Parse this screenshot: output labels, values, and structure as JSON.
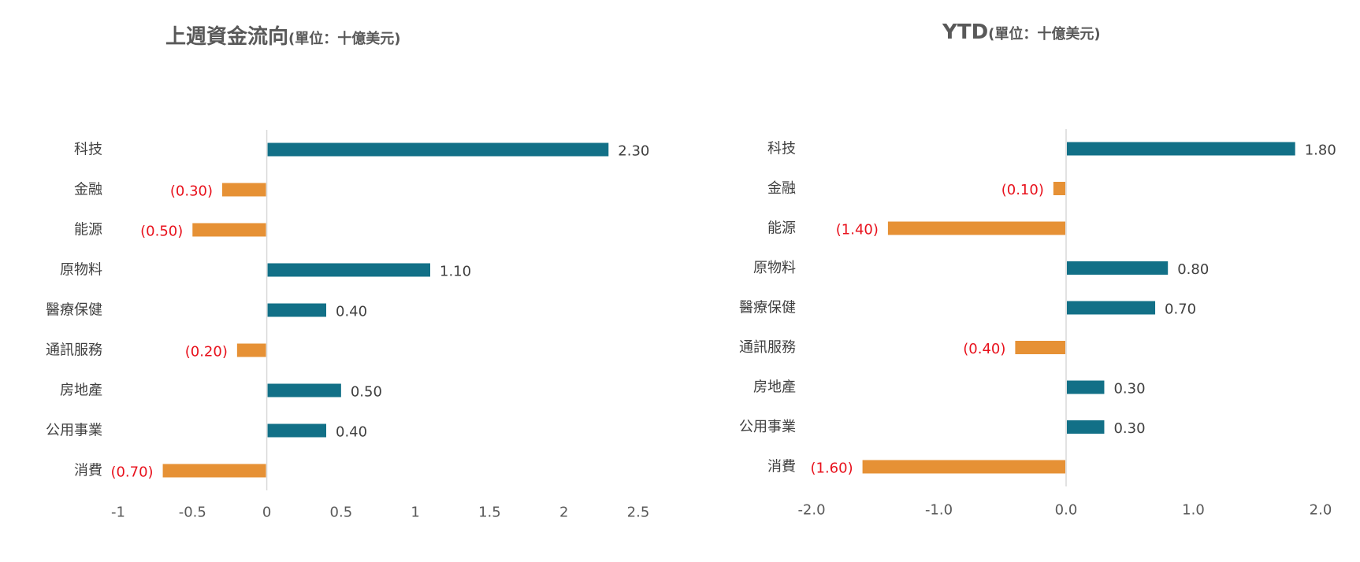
{
  "colors": {
    "positive": "#127087",
    "negative": "#E69135",
    "negative_label": "#E8111C",
    "label_text": "#404040",
    "tick_text": "#595959",
    "axis_line": "#D9D9D9"
  },
  "chart_data": [
    {
      "type": "bar",
      "orientation": "horizontal",
      "title": "上週資金流向",
      "unit_label": "(單位：十億美元)",
      "categories": [
        "科技",
        "金融",
        "能源",
        "原物料",
        "醫療保健",
        "通訊服務",
        "房地產",
        "公用事業",
        "消費"
      ],
      "values": [
        2.3,
        -0.3,
        -0.5,
        1.1,
        0.4,
        -0.2,
        0.5,
        0.4,
        -0.7
      ],
      "value_labels": [
        "2.30",
        "(0.30)",
        "(0.50)",
        "1.10",
        "0.40",
        "(0.20)",
        "0.50",
        "0.40",
        "(0.70)"
      ],
      "xlim": [
        -1,
        2.5
      ],
      "xticks": [
        -1,
        -0.5,
        0,
        0.5,
        1,
        1.5,
        2,
        2.5
      ],
      "xtick_labels": [
        "-1",
        "-0.5",
        "0",
        "0.5",
        "1",
        "1.5",
        "2",
        "2.5"
      ],
      "grid": false,
      "legend": false
    },
    {
      "type": "bar",
      "orientation": "horizontal",
      "title": "YTD",
      "unit_label": "(單位：十億美元)",
      "categories": [
        "科技",
        "金融",
        "能源",
        "原物料",
        "醫療保健",
        "通訊服務",
        "房地產",
        "公用事業",
        "消費"
      ],
      "values": [
        1.8,
        -0.1,
        -1.4,
        0.8,
        0.7,
        -0.4,
        0.3,
        0.3,
        -1.6
      ],
      "value_labels": [
        "1.80",
        "(0.10)",
        "(1.40)",
        "0.80",
        "0.70",
        "(0.40)",
        "0.30",
        "0.30",
        "(1.60)"
      ],
      "xlim": [
        -2,
        2
      ],
      "xticks": [
        -2,
        -1,
        0,
        1,
        2
      ],
      "xtick_labels": [
        "-2.0",
        "-1.0",
        "0.0",
        "1.0",
        "2.0"
      ],
      "grid": false,
      "legend": false
    }
  ]
}
